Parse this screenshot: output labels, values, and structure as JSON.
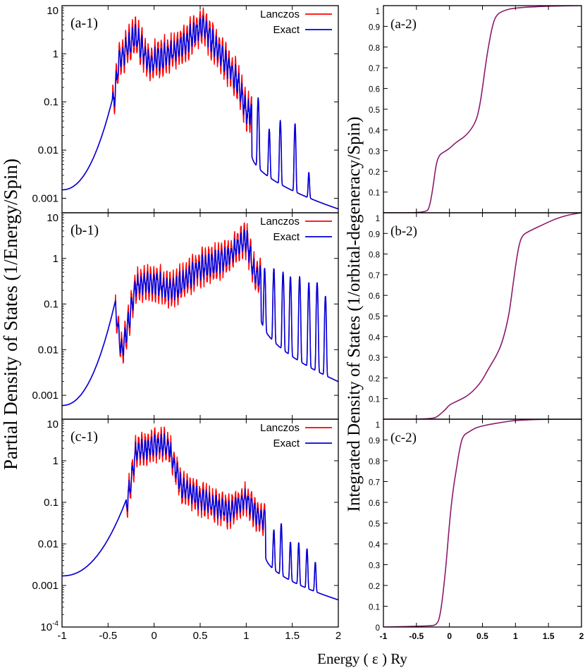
{
  "figure": {
    "ylabel_left": "Partial Density of States  (1/Energy/Spin)",
    "ylabel_right": "Integrated Density of States  (1/orbital-degeneracy/Spin)",
    "xlabel": "Energy ( ε ) Ry",
    "colors": {
      "lanczos": "#ff0000",
      "exact": "#0000dd",
      "integrated": "#8b1a6b"
    }
  },
  "chart_data": [
    {
      "type": "line",
      "panel_label": "(a-1)",
      "yscale": "log",
      "xlim": [
        -1,
        2
      ],
      "ylim": [
        0.0005,
        10
      ],
      "yticks": [
        "10",
        "1",
        "0.1",
        "0.01",
        "0.001"
      ],
      "xticks": [],
      "legend": [
        "Lanczos",
        "Exact"
      ],
      "series_profile": {
        "onset": -0.45,
        "left_tail_start": 0.0015,
        "right_tail_end": 0.0006,
        "peaks_exact": [
          [
            -0.38,
            1.0
          ],
          [
            -0.2,
            3.0
          ],
          [
            -0.05,
            0.8
          ],
          [
            0.25,
            1.5
          ],
          [
            0.52,
            5.0
          ],
          [
            0.7,
            1.5
          ],
          [
            0.92,
            0.3
          ],
          [
            1.0,
            0.08
          ]
        ],
        "isolated_peaks": [
          [
            1.13,
            0.12
          ],
          [
            1.25,
            0.025
          ],
          [
            1.37,
            0.04
          ],
          [
            1.53,
            0.035
          ],
          [
            1.68,
            0.0025
          ]
        ]
      }
    },
    {
      "type": "line",
      "panel_label": "(b-1)",
      "yscale": "log",
      "xlim": [
        -1,
        2
      ],
      "ylim": [
        0.0003,
        10
      ],
      "yticks": [
        "10",
        "1",
        "0.1",
        "0.01",
        "0.001"
      ],
      "xticks": [],
      "legend": [
        "Lanczos",
        "Exact"
      ],
      "series_profile": {
        "onset": -0.42,
        "left_tail_start": 0.0006,
        "right_tail_end": 0.002,
        "peaks_exact": [
          [
            -0.35,
            0.01
          ],
          [
            -0.2,
            0.3
          ],
          [
            0.0,
            0.4
          ],
          [
            0.2,
            0.25
          ],
          [
            0.5,
            0.8
          ],
          [
            0.8,
            1.3
          ],
          [
            1.0,
            3.5
          ],
          [
            1.1,
            0.5
          ]
        ],
        "isolated_peaks": [
          [
            1.2,
            0.6
          ],
          [
            1.3,
            0.6
          ],
          [
            1.4,
            0.5
          ],
          [
            1.48,
            0.4
          ],
          [
            1.58,
            0.4
          ],
          [
            1.68,
            0.3
          ],
          [
            1.77,
            0.3
          ],
          [
            1.86,
            0.15
          ]
        ]
      }
    },
    {
      "type": "line",
      "panel_label": "(c-1)",
      "yscale": "log",
      "xlim": [
        -1,
        2
      ],
      "ylim": [
        0.0001,
        10
      ],
      "yticks": [
        "10",
        "1",
        "0.1",
        "0.01",
        "0.001",
        "10-4"
      ],
      "xticks": [
        "-1",
        "-0.5",
        "0",
        "0.5",
        "1",
        "1.5",
        "2"
      ],
      "legend": [
        "Lanczos",
        "Exact"
      ],
      "series_profile": {
        "onset": -0.3,
        "left_tail_start": 0.0017,
        "right_tail_end": 0.00045,
        "peaks_exact": [
          [
            -0.2,
            2.0
          ],
          [
            0.0,
            3.0
          ],
          [
            0.15,
            3.0
          ],
          [
            0.3,
            0.3
          ],
          [
            0.5,
            0.15
          ],
          [
            0.8,
            0.08
          ],
          [
            1.0,
            0.15
          ],
          [
            1.15,
            0.05
          ]
        ],
        "isolated_peaks": [
          [
            1.3,
            0.02
          ],
          [
            1.38,
            0.03
          ],
          [
            1.48,
            0.01
          ],
          [
            1.57,
            0.01
          ],
          [
            1.66,
            0.007
          ],
          [
            1.75,
            0.003
          ]
        ]
      }
    },
    {
      "type": "line",
      "panel_label": "(a-2)",
      "yscale": "linear",
      "xlim": [
        -1,
        2
      ],
      "ylim": [
        0,
        1
      ],
      "yticks": [
        "1",
        "0.9",
        "0.8",
        "0.7",
        "0.6",
        "0.5",
        "0.4",
        "0.3",
        "0.2",
        "0.1"
      ],
      "xticks": [],
      "x": [
        -1,
        -0.35,
        -0.3,
        -0.25,
        -0.2,
        -0.15,
        -0.1,
        0.0,
        0.1,
        0.2,
        0.3,
        0.4,
        0.45,
        0.5,
        0.55,
        0.6,
        0.65,
        0.7,
        0.8,
        1.0,
        1.5,
        2.0
      ],
      "y": [
        0,
        0,
        0.03,
        0.12,
        0.24,
        0.28,
        0.29,
        0.31,
        0.34,
        0.36,
        0.39,
        0.44,
        0.5,
        0.6,
        0.72,
        0.82,
        0.9,
        0.95,
        0.975,
        0.99,
        0.998,
        1.0
      ]
    },
    {
      "type": "line",
      "panel_label": "(b-2)",
      "yscale": "linear",
      "xlim": [
        -1,
        2
      ],
      "ylim": [
        0,
        1
      ],
      "yticks": [
        "1",
        "0.9",
        "0.8",
        "0.7",
        "0.6",
        "0.5",
        "0.4",
        "0.3",
        "0.2",
        "0.1"
      ],
      "xticks": [],
      "x": [
        -1,
        -0.25,
        -0.15,
        -0.05,
        0.0,
        0.1,
        0.2,
        0.3,
        0.4,
        0.5,
        0.6,
        0.7,
        0.8,
        0.9,
        0.95,
        1.0,
        1.05,
        1.1,
        1.2,
        1.4,
        1.6,
        1.8,
        2.0
      ],
      "y": [
        0,
        0,
        0.02,
        0.05,
        0.07,
        0.085,
        0.1,
        0.12,
        0.15,
        0.19,
        0.25,
        0.3,
        0.37,
        0.5,
        0.62,
        0.74,
        0.84,
        0.89,
        0.91,
        0.94,
        0.97,
        0.99,
        1.0
      ]
    },
    {
      "type": "line",
      "panel_label": "(c-2)",
      "yscale": "linear",
      "xlim": [
        -1,
        2
      ],
      "ylim": [
        0,
        1
      ],
      "yticks": [
        "1",
        "0.9",
        "0.8",
        "0.7",
        "0.6",
        "0.5",
        "0.4",
        "0.3",
        "0.2",
        "0.1",
        "0"
      ],
      "xticks": [
        "-1",
        "-0.5",
        "0",
        "0.5",
        "1",
        "1.5",
        "2"
      ],
      "x": [
        -1,
        -0.3,
        -0.2,
        -0.15,
        -0.1,
        -0.05,
        0.0,
        0.05,
        0.1,
        0.15,
        0.2,
        0.3,
        0.4,
        0.6,
        0.8,
        1.0,
        1.5,
        2.0
      ],
      "y": [
        0,
        0.005,
        0.01,
        0.04,
        0.15,
        0.3,
        0.5,
        0.65,
        0.75,
        0.85,
        0.92,
        0.94,
        0.96,
        0.975,
        0.985,
        0.995,
        1.0,
        1.0
      ]
    }
  ]
}
